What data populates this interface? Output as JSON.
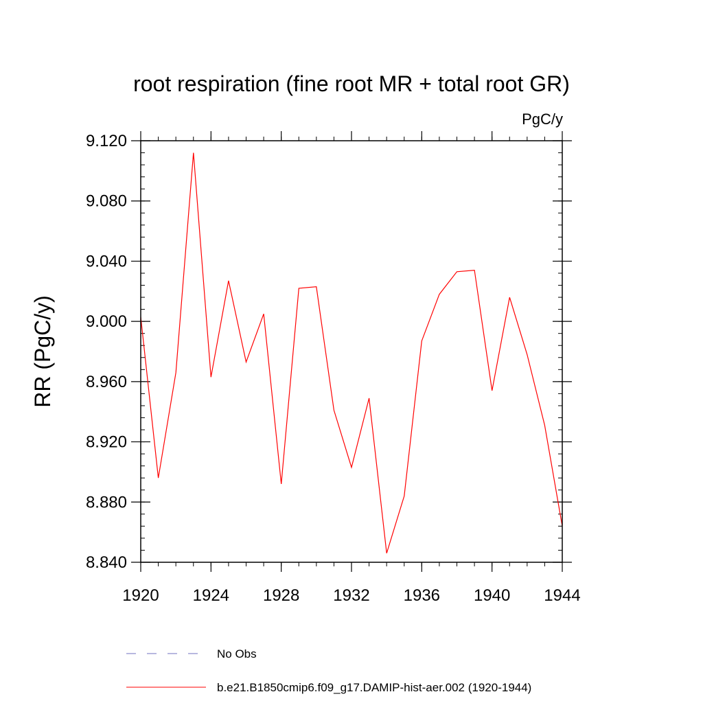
{
  "chart_data": {
    "type": "line",
    "title": "root respiration (fine root MR + total root GR)",
    "units": "PgC/y",
    "ylabel": "RR  (PgC/y)",
    "xlabel": "",
    "xlim": [
      1920,
      1944
    ],
    "ylim": [
      8.84,
      9.12
    ],
    "x_ticks": [
      1920,
      1924,
      1928,
      1932,
      1936,
      1940,
      1944
    ],
    "x_tick_labels": [
      "1920",
      "1924",
      "1928",
      "1932",
      "1936",
      "1940",
      "1944"
    ],
    "y_ticks": [
      8.84,
      8.88,
      8.92,
      8.96,
      9.0,
      9.04,
      9.08,
      9.12
    ],
    "y_tick_labels": [
      "8.840",
      "8.880",
      "8.920",
      "8.960",
      "9.000",
      "9.040",
      "9.080",
      "9.120"
    ],
    "x_minor_step": 1,
    "y_minor_step": 0.008,
    "grid": false,
    "legend_position": "bottom",
    "series": [
      {
        "name": "b.e21.B1850cmip6.f09_g17.DAMIP-hist-aer.002 (1920-1944)",
        "color": "#ff0000",
        "style": "solid",
        "x": [
          1920,
          1921,
          1922,
          1923,
          1924,
          1925,
          1926,
          1927,
          1928,
          1929,
          1930,
          1931,
          1932,
          1933,
          1934,
          1935,
          1936,
          1937,
          1938,
          1939,
          1940,
          1941,
          1942,
          1943,
          1944
        ],
        "y": [
          9.003,
          8.896,
          8.966,
          9.112,
          8.963,
          9.027,
          8.973,
          9.005,
          8.892,
          9.022,
          9.023,
          8.941,
          8.903,
          8.949,
          8.846,
          8.884,
          8.987,
          9.018,
          9.033,
          9.034,
          8.954,
          9.016,
          8.978,
          8.931,
          8.864
        ]
      }
    ],
    "legend": [
      {
        "label": "No Obs",
        "color": "#7070c0",
        "style": "dashed"
      },
      {
        "label": "b.e21.B1850cmip6.f09_g17.DAMIP-hist-aer.002 (1920-1944)",
        "color": "#ff0000",
        "style": "solid"
      }
    ]
  }
}
